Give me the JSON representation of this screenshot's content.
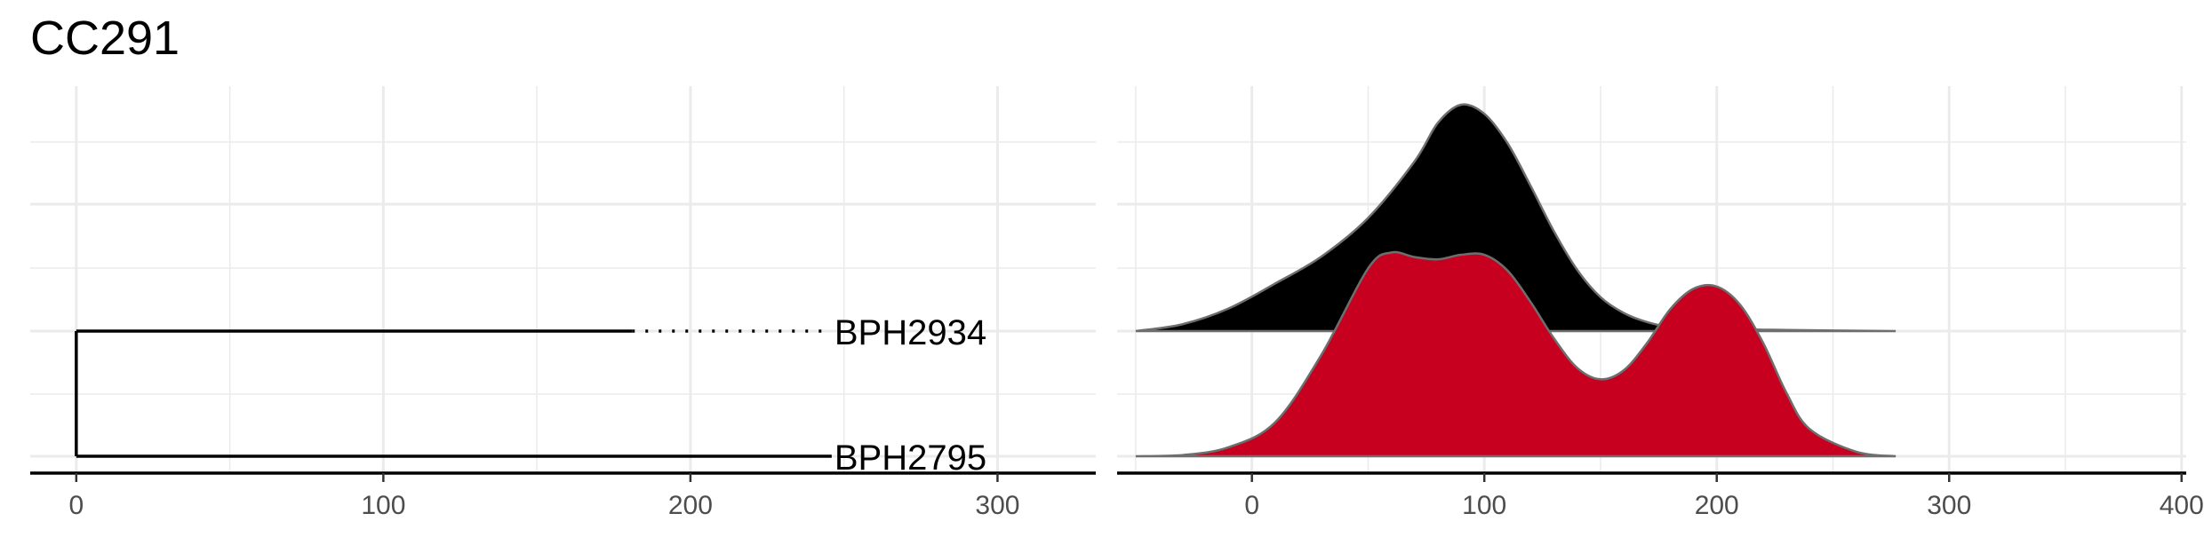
{
  "title": "CC291",
  "chart_data": [
    {
      "type": "tree",
      "panel": "phylogeny",
      "xlim": [
        -15,
        332
      ],
      "x_ticks": [
        0,
        100,
        200,
        300
      ],
      "x_tick_labels": [
        "0",
        "100",
        "200",
        "300"
      ],
      "tips": [
        {
          "label": "BPH2934",
          "branch_length": 181,
          "aligned_to": 246,
          "y": 2
        },
        {
          "label": "BPH2795",
          "branch_length": 246,
          "aligned_to": 246,
          "y": 1
        }
      ],
      "root_x": 0,
      "grid": true
    },
    {
      "type": "area",
      "panel": "ridgeline density",
      "xlim": [
        -58,
        402
      ],
      "x_ticks": [
        0,
        100,
        200,
        300,
        400
      ],
      "x_tick_labels": [
        "0",
        "100",
        "200",
        "300",
        "400"
      ],
      "grid": true,
      "series": [
        {
          "row": "BPH2934",
          "color": "#000000",
          "x": [
            -50,
            -30,
            -10,
            10,
            30,
            50,
            70,
            80,
            90,
            100,
            110,
            120,
            130,
            140,
            150,
            160,
            170,
            180,
            200,
            230,
            277
          ],
          "y": [
            0,
            0.03,
            0.1,
            0.21,
            0.33,
            0.5,
            0.75,
            0.92,
            1.0,
            0.96,
            0.83,
            0.64,
            0.44,
            0.27,
            0.15,
            0.08,
            0.04,
            0.02,
            0.01,
            0.005,
            0.0
          ]
        },
        {
          "row": "BPH2795",
          "color": "#c8001f",
          "x": [
            -50,
            -30,
            -10,
            10,
            30,
            50,
            60,
            70,
            80,
            90,
            100,
            110,
            120,
            130,
            140,
            150,
            160,
            170,
            180,
            190,
            200,
            210,
            220,
            230,
            240,
            260,
            277
          ],
          "y": [
            0,
            0.005,
            0.04,
            0.15,
            0.45,
            0.83,
            0.9,
            0.88,
            0.87,
            0.89,
            0.89,
            0.82,
            0.68,
            0.52,
            0.39,
            0.34,
            0.38,
            0.5,
            0.65,
            0.74,
            0.75,
            0.67,
            0.5,
            0.28,
            0.12,
            0.02,
            0.0
          ]
        }
      ]
    }
  ]
}
